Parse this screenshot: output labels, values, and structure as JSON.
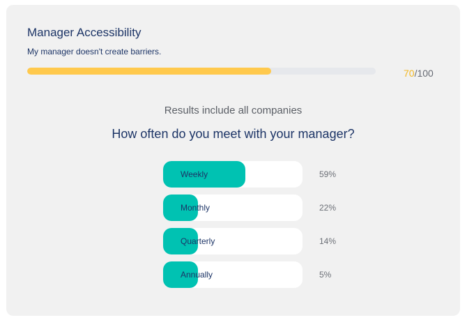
{
  "card": {
    "title": "Manager Accessibility",
    "subtitle": "My manager doesn't create barriers.",
    "score": {
      "value": "70",
      "max_text": "/100",
      "fraction": 0.7,
      "fill_color": "#ffc94d",
      "value_color": "#f3b823"
    },
    "results_note": "Results include all companies",
    "question": "How often do you meet with your manager?",
    "accent_color": "#00c2b2",
    "options": [
      {
        "label": "Weekly",
        "percent_text": "59%",
        "fraction": 0.59
      },
      {
        "label": "Monthly",
        "percent_text": "22%",
        "fraction": 0.22
      },
      {
        "label": "Quarterly",
        "percent_text": "14%",
        "fraction": 0.14
      },
      {
        "label": "Annually",
        "percent_text": "5%",
        "fraction": 0.05
      }
    ]
  }
}
